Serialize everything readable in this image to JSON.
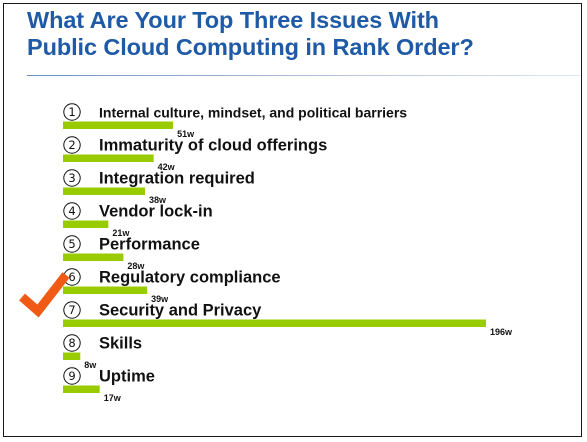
{
  "slide": {
    "title_line1": "What Are Your Top Three Issues With",
    "title_line2": "Public Cloud Computing in Rank Order?"
  },
  "colors": {
    "title": "#1f5aa6",
    "bar": "#99cc00",
    "checkmark": "#f05a14"
  },
  "highlight_icon": "checkmark-icon",
  "highlight_rank": 7,
  "chart_data": {
    "type": "bar",
    "orientation": "horizontal",
    "title": "What Are Your Top Three Issues With Public Cloud Computing in Rank Order?",
    "unit_suffix": "w",
    "categories": [
      "Internal culture, mindset, and political barriers",
      "Immaturity of cloud offerings",
      "Integration required",
      "Vendor lock-in",
      "Performance",
      "Regulatory compliance",
      "Security and Privacy",
      "Skills",
      "Uptime"
    ],
    "ranks": [
      1,
      2,
      3,
      4,
      5,
      6,
      7,
      8,
      9
    ],
    "values": [
      51,
      42,
      38,
      21,
      28,
      39,
      196,
      8,
      17
    ],
    "value_labels": [
      "51w",
      "42w",
      "38w",
      "21w",
      "28w",
      "39w",
      "196w",
      "8w",
      "17w"
    ],
    "xlim": [
      0,
      196
    ],
    "grid": false,
    "legend": "none"
  }
}
